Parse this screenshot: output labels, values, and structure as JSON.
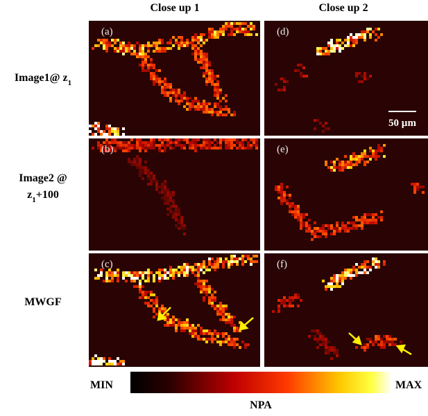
{
  "column_headers": [
    "Close up 1",
    "Close up 2"
  ],
  "row_labels": [
    {
      "lines": [
        {
          "text": "Image1@ z",
          "sub": "1"
        }
      ]
    },
    {
      "lines": [
        {
          "text": "Image2 @"
        },
        {
          "text": "z",
          "sub": "1",
          "after": "+100"
        }
      ]
    },
    {
      "lines": [
        {
          "text": "MWGF"
        }
      ]
    }
  ],
  "panels": [
    "(a)",
    "(d)",
    "(b)",
    "(e)",
    "(c)",
    "(f)"
  ],
  "scale_bar": "50 µm",
  "colorbar": {
    "min_label": "MIN",
    "max_label": "MAX",
    "title": "NPA"
  }
}
